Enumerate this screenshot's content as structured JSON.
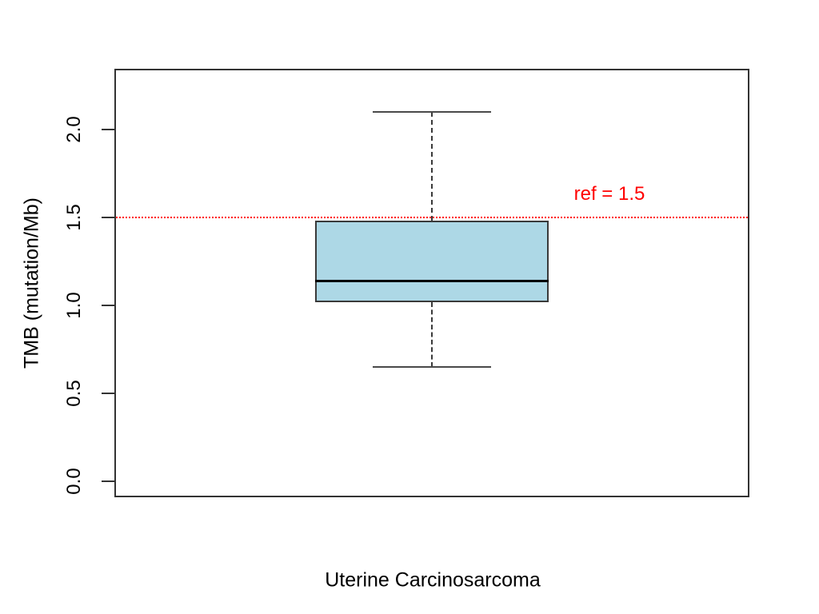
{
  "figure": {
    "background_color": "#ffffff"
  },
  "chart_data": {
    "type": "boxplot",
    "title": "",
    "xlabel": "Uterine Carcinosarcoma",
    "ylabel": "TMB (mutation/Mb)",
    "ylim": [
      -0.09,
      2.44
    ],
    "grid": false,
    "legend": null,
    "y_ticks": [
      {
        "value": 0.0,
        "label": "0.0"
      },
      {
        "value": 0.5,
        "label": "0.5"
      },
      {
        "value": 1.0,
        "label": "1.0"
      },
      {
        "value": 1.5,
        "label": "1.5"
      },
      {
        "value": 2.0,
        "label": "2.0"
      }
    ],
    "series": [
      {
        "name": "Uterine Carcinosarcoma",
        "stats": {
          "whisker_low": 0.65,
          "q1": 1.02,
          "median": 1.14,
          "q3": 1.48,
          "whisker_high": 2.1
        }
      }
    ],
    "ref_line": {
      "value": 1.5,
      "label": "ref = 1.5",
      "color": "#ff0000",
      "line_style": "dotted"
    },
    "colors": {
      "box_fill": "#add8e6",
      "box_border": "#3a3a3a",
      "median": "#000000",
      "axis": "#333333",
      "whisker": "#3a3a3a"
    }
  }
}
